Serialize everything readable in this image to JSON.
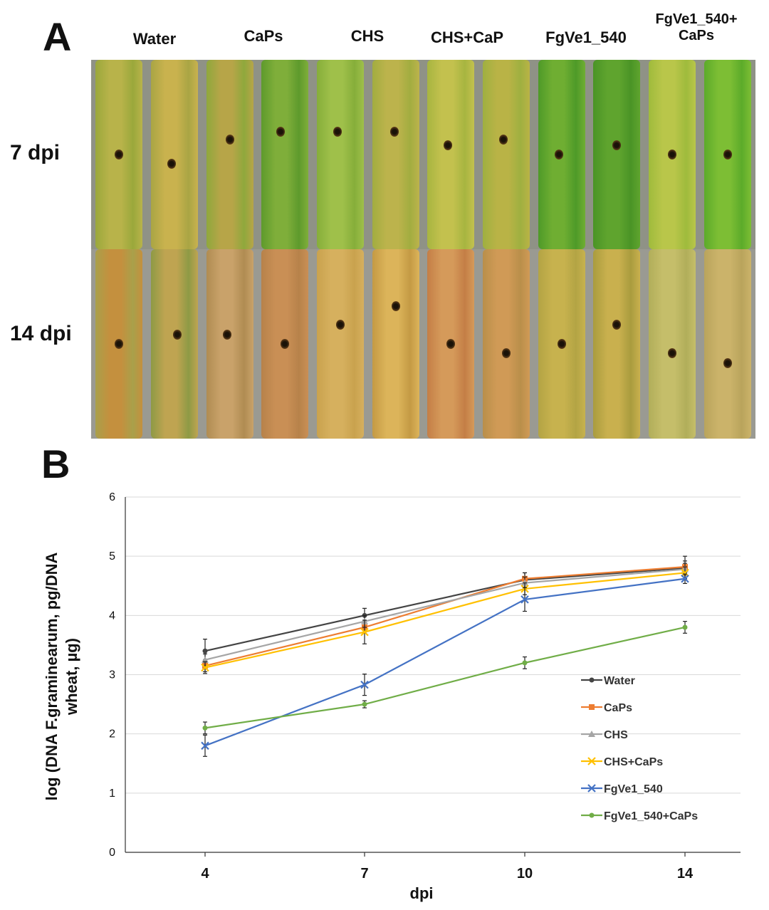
{
  "panel_a": {
    "letter": "A",
    "columns": [
      "Water",
      "CaPs",
      "CHS",
      "CHS+CaP",
      "FgVe1_540",
      "FgVe1_540+",
      "CaPs"
    ],
    "rows": [
      "7 dpi",
      "14 dpi"
    ]
  },
  "panel_b": {
    "letter": "B"
  },
  "chart_data": {
    "type": "line",
    "xlabel": "dpi",
    "ylabel_line1": "log (DNA F.graminearum, pg/DNA",
    "ylabel_line2": "wheat, µg)",
    "x": [
      4,
      7,
      10,
      14
    ],
    "x_tick_labels": [
      "4",
      "7",
      "10",
      "14"
    ],
    "y_tick_labels": [
      "0",
      "1",
      "2",
      "3",
      "4",
      "5",
      "6"
    ],
    "ylim": [
      0,
      6
    ],
    "grid": true,
    "legend_position": "right",
    "series": [
      {
        "name": "Water",
        "color": "#444444",
        "marker": "dot",
        "values": [
          3.4,
          4.0,
          4.6,
          4.8
        ],
        "errors": [
          0.2,
          0.12,
          0.12,
          0.2
        ]
      },
      {
        "name": "CaPs",
        "color": "#ed7d31",
        "marker": "square",
        "values": [
          3.15,
          3.8,
          4.62,
          4.82
        ],
        "errors": [
          0.1,
          0.1,
          0.1,
          0.1
        ]
      },
      {
        "name": "CHS",
        "color": "#a5a5a5",
        "marker": "triangle",
        "values": [
          3.25,
          3.9,
          4.55,
          4.78
        ],
        "errors": [
          0.1,
          0.1,
          0.1,
          0.1
        ]
      },
      {
        "name": "CHS+CaPs",
        "color": "#ffc000",
        "marker": "x",
        "values": [
          3.12,
          3.72,
          4.45,
          4.72
        ],
        "errors": [
          0.1,
          0.2,
          0.1,
          0.1
        ]
      },
      {
        "name": "FgVe1_540",
        "color": "#4472c4",
        "marker": "x",
        "values": [
          1.8,
          2.83,
          4.27,
          4.62
        ],
        "errors": [
          0.18,
          0.18,
          0.2,
          0.08
        ]
      },
      {
        "name": "FgVe1_540+CaPs",
        "color": "#70ad47",
        "marker": "dot",
        "values": [
          2.1,
          2.5,
          3.2,
          3.8
        ],
        "errors": [
          0.1,
          0.06,
          0.1,
          0.1
        ]
      }
    ]
  }
}
